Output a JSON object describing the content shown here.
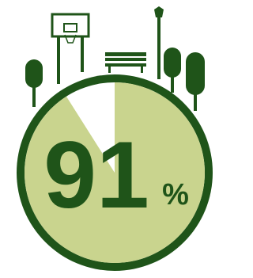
{
  "chart_data": {
    "type": "pie",
    "values": [
      91
    ],
    "unit": "%",
    "color": "#c9d48e",
    "rest_color": "#ffffff",
    "ring_color": "#1f5419"
  }
}
